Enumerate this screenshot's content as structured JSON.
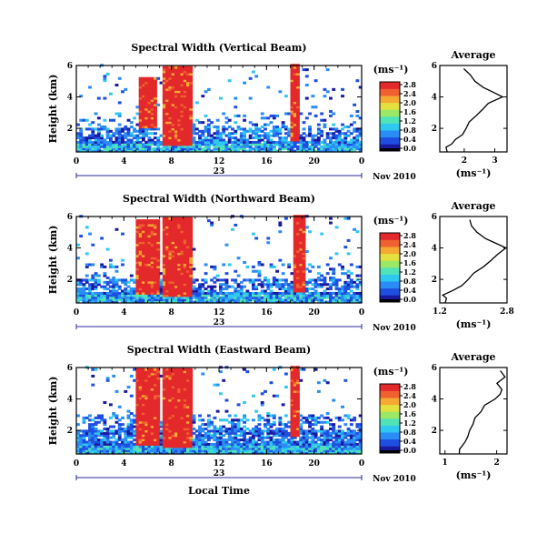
{
  "figure": {
    "date_label": "Nov 2010",
    "xlabel": "Local Time",
    "units_label": "(ms⁻¹)",
    "average_title": "Average",
    "average_xlabel": "(ms⁻¹)",
    "day_label": "23"
  },
  "colormap": [
    "#1a1aa0",
    "#1e4fe0",
    "#2a8cf5",
    "#2fc8f0",
    "#50e3b8",
    "#9be866",
    "#e4e040",
    "#f5a832",
    "#f06030",
    "#e3292b"
  ],
  "chart_data": [
    {
      "type": "heatmap",
      "title": "Spectral Width (Vertical Beam)",
      "xlabel": "Local Time",
      "ylabel": "Height (km)",
      "xlim": [
        0,
        24
      ],
      "ylim": [
        0.5,
        6
      ],
      "xticks": [
        "0",
        "4",
        "8",
        "12",
        "16",
        "20",
        "0"
      ],
      "yticks": [
        "2",
        "4",
        "6"
      ],
      "colorbar": {
        "ticks": [
          "0.0",
          "0.4",
          "0.8",
          "1.2",
          "1.6",
          "2.0",
          "2.4",
          "2.8"
        ]
      },
      "high_width_regions": [
        {
          "x": [
            5.1,
            6.6
          ],
          "y": [
            2.0,
            5.2
          ]
        },
        {
          "x": [
            7.2,
            9.5
          ],
          "y": [
            0.8,
            5.9
          ]
        },
        {
          "x": [
            17.9,
            18.7
          ],
          "y": [
            1.2,
            6.0
          ]
        }
      ],
      "average_profile": {
        "xlim": [
          1.2,
          3.4
        ],
        "xticks": [
          "2",
          "3"
        ],
        "height": [
          0.5,
          0.8,
          1.0,
          1.3,
          1.6,
          2.0,
          2.4,
          2.8,
          3.2,
          3.6,
          4.0,
          4.3,
          4.6,
          5.0,
          5.4,
          5.8
        ],
        "width": [
          1.4,
          1.45,
          1.6,
          1.75,
          1.9,
          2.1,
          2.2,
          2.35,
          2.6,
          2.8,
          3.25,
          2.9,
          2.6,
          2.4,
          2.2,
          2.0
        ]
      }
    },
    {
      "type": "heatmap",
      "title": "Spectral Width (Northward Beam)",
      "xlabel": "Local Time",
      "ylabel": "Height (km)",
      "xlim": [
        0,
        24
      ],
      "ylim": [
        0.5,
        6
      ],
      "xticks": [
        "0",
        "4",
        "8",
        "12",
        "16",
        "20",
        "0"
      ],
      "yticks": [
        "2",
        "4",
        "6"
      ],
      "colorbar": {
        "ticks": [
          "0.0",
          "0.4",
          "0.8",
          "1.2",
          "1.6",
          "2.0",
          "2.4",
          "2.8"
        ]
      },
      "high_width_regions": [
        {
          "x": [
            5.0,
            6.8
          ],
          "y": [
            1.0,
            5.8
          ]
        },
        {
          "x": [
            7.2,
            9.5
          ],
          "y": [
            0.8,
            5.9
          ]
        },
        {
          "x": [
            18.2,
            19.0
          ],
          "y": [
            1.2,
            6.0
          ]
        }
      ],
      "average_profile": {
        "xlim": [
          1.2,
          2.8
        ],
        "xticks": [
          "1.2",
          "2.8"
        ],
        "height": [
          0.5,
          0.8,
          1.0,
          1.3,
          1.6,
          2.0,
          2.4,
          2.8,
          3.2,
          3.6,
          4.0,
          4.3,
          4.6,
          5.0,
          5.4,
          5.8
        ],
        "width": [
          1.3,
          1.35,
          1.3,
          1.5,
          1.7,
          1.85,
          2.0,
          2.2,
          2.45,
          2.6,
          2.75,
          2.5,
          2.3,
          2.1,
          2.0,
          1.9
        ]
      }
    },
    {
      "type": "heatmap",
      "title": "Spectral Width (Eastward Beam)",
      "xlabel": "Local Time",
      "ylabel": "Height (km)",
      "xlim": [
        0,
        24
      ],
      "ylim": [
        0.5,
        6
      ],
      "xticks": [
        "0",
        "4",
        "8",
        "12",
        "16",
        "20",
        "0"
      ],
      "yticks": [
        "2",
        "4",
        "6"
      ],
      "colorbar": {
        "ticks": [
          "0.0",
          "0.4",
          "0.8",
          "1.2",
          "1.6",
          "2.0",
          "2.4",
          "2.8"
        ]
      },
      "high_width_regions": [
        {
          "x": [
            5.0,
            6.8
          ],
          "y": [
            1.0,
            5.9
          ]
        },
        {
          "x": [
            7.2,
            9.5
          ],
          "y": [
            0.8,
            5.9
          ]
        },
        {
          "x": [
            17.9,
            18.7
          ],
          "y": [
            1.5,
            6.0
          ]
        }
      ],
      "average_profile": {
        "xlim": [
          0.9,
          2.2
        ],
        "xticks": [
          "1",
          "2"
        ],
        "height": [
          0.5,
          0.8,
          1.0,
          1.3,
          1.6,
          2.0,
          2.4,
          2.8,
          3.2,
          3.6,
          4.0,
          4.3,
          4.6,
          5.0,
          5.4,
          5.8
        ],
        "width": [
          1.25,
          1.3,
          1.35,
          1.4,
          1.45,
          1.5,
          1.55,
          1.6,
          1.7,
          1.8,
          1.95,
          2.05,
          2.1,
          2.0,
          2.15,
          2.1
        ]
      }
    }
  ]
}
